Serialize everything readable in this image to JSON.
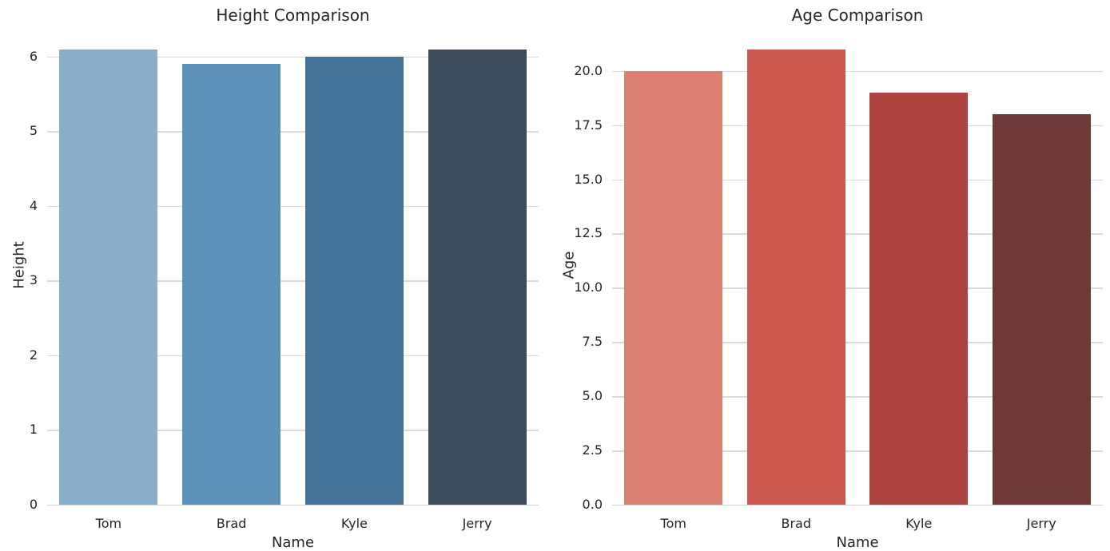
{
  "figure": {
    "background_color": "#ffffff",
    "text_color": "#262626",
    "grid_color": "#dadada",
    "axis_line_color": "#d0d0d0"
  },
  "chart_data": [
    {
      "type": "bar",
      "title": "Height Comparison",
      "xlabel": "Name",
      "ylabel": "Height",
      "categories": [
        "Tom",
        "Brad",
        "Kyle",
        "Jerry"
      ],
      "values": [
        6.1,
        5.9,
        6.0,
        6.1
      ],
      "bar_colors": [
        "#8aafcb",
        "#5d93bb",
        "#447398",
        "#3b4c5f"
      ],
      "palette": "Blues_d",
      "ylim": [
        0,
        6.405
      ],
      "yticks": [
        0,
        1,
        2,
        3,
        4,
        5,
        6
      ],
      "ytick_labels": [
        "0",
        "1",
        "2",
        "3",
        "4",
        "5",
        "6"
      ],
      "bar_width_fraction": 0.8,
      "grid": true,
      "legend": false
    },
    {
      "type": "bar",
      "title": "Age Comparison",
      "xlabel": "Name",
      "ylabel": "Age",
      "categories": [
        "Tom",
        "Brad",
        "Kyle",
        "Jerry"
      ],
      "values": [
        20,
        21,
        19,
        18
      ],
      "bar_colors": [
        "#db7f70",
        "#cd584f",
        "#ac433f",
        "#6e3937"
      ],
      "palette": "Reds_d",
      "ylim": [
        0,
        22.05
      ],
      "yticks": [
        0,
        2.5,
        5,
        7.5,
        10,
        12.5,
        15,
        17.5,
        20
      ],
      "ytick_labels": [
        "0.0",
        "2.5",
        "5.0",
        "7.5",
        "10.0",
        "12.5",
        "15.0",
        "17.5",
        "20.0"
      ],
      "bar_width_fraction": 0.8,
      "grid": true,
      "legend": false
    }
  ]
}
